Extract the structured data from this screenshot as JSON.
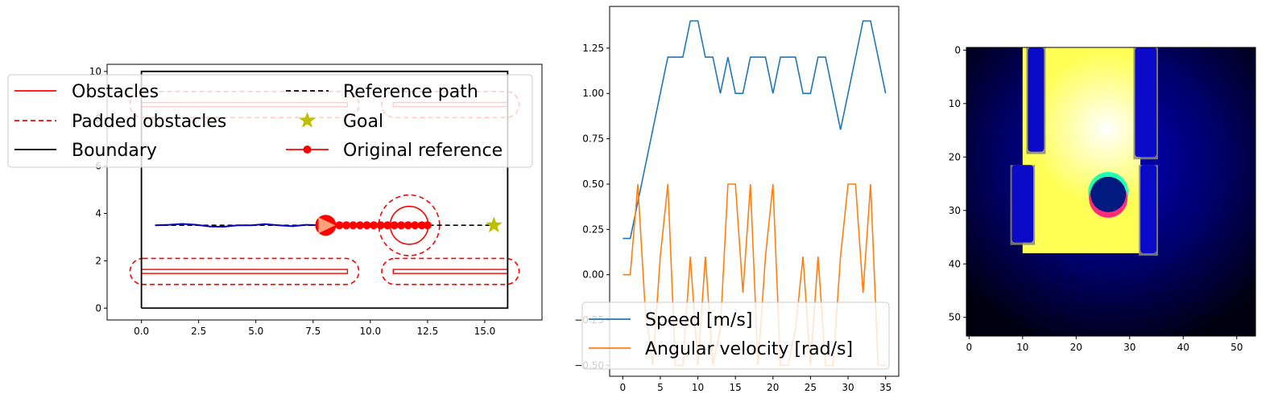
{
  "chart_data": [
    {
      "type": "line",
      "panel": "map",
      "xlim": [
        -1.5,
        17.5
      ],
      "ylim": [
        -0.5,
        10.3
      ],
      "xticks": [
        "0.0",
        "2.5",
        "5.0",
        "7.5",
        "10.0",
        "12.5",
        "15.0"
      ],
      "xtick_values": [
        0,
        2.5,
        5,
        7.5,
        10,
        12.5,
        15
      ],
      "yticks": [
        "0",
        "2",
        "4",
        "6",
        "8",
        "10"
      ],
      "ytick_values": [
        0,
        2,
        4,
        6,
        8,
        10
      ],
      "boundary": [
        [
          0,
          0
        ],
        [
          16,
          0
        ],
        [
          16,
          10
        ],
        [
          0,
          10
        ],
        [
          0,
          0
        ]
      ],
      "obstacles": [
        {
          "x0": 0,
          "x1": 9,
          "y": 1.55
        },
        {
          "x0": 11,
          "x1": 16,
          "y": 1.55
        },
        {
          "x0": 0,
          "x1": 9,
          "y": 8.6
        },
        {
          "x0": 11,
          "x1": 16,
          "y": 8.6
        }
      ],
      "padded_obstacles": [
        {
          "x0": -0.5,
          "x1": 9.5,
          "y0": 1.0,
          "y1": 2.1
        },
        {
          "x0": 10.5,
          "x1": 16.5,
          "y0": 1.0,
          "y1": 2.1
        },
        {
          "x0": -0.5,
          "x1": 9.5,
          "y0": 8.05,
          "y1": 9.15
        },
        {
          "x0": 10.5,
          "x1": 16.5,
          "y0": 8.05,
          "y1": 9.15
        }
      ],
      "moving_obstacle": {
        "cx": 11.7,
        "cy": 3.5,
        "r": 0.8,
        "padded_r": 1.28
      },
      "reference_path": {
        "x": [
          0.6,
          15.4
        ],
        "y": [
          3.5,
          3.5
        ]
      },
      "goal": {
        "x": 15.4,
        "y": 3.5
      },
      "robot": {
        "x": 8.05,
        "y": 3.5
      },
      "original_reference": {
        "x": [
          8.05,
          8.35,
          8.65,
          8.95,
          9.25,
          9.55,
          9.85,
          10.15,
          10.45,
          10.75,
          11.05,
          11.35,
          11.65,
          11.95,
          12.25,
          12.5
        ],
        "y": [
          3.5,
          3.5,
          3.5,
          3.5,
          3.5,
          3.5,
          3.5,
          3.5,
          3.5,
          3.5,
          3.5,
          3.5,
          3.5,
          3.5,
          3.5,
          3.5
        ]
      },
      "trajectory": {
        "x": [
          0.6,
          1.2,
          1.8,
          2.4,
          3.0,
          3.6,
          4.2,
          4.8,
          5.4,
          6.0,
          6.6,
          7.2,
          7.8
        ],
        "y": [
          3.5,
          3.52,
          3.56,
          3.52,
          3.45,
          3.44,
          3.5,
          3.5,
          3.55,
          3.5,
          3.46,
          3.52,
          3.5
        ]
      },
      "legend": {
        "placement": "upper left (spilling outside axes)",
        "entries": [
          "Obstacles",
          "Reference path",
          "Padded obstacles",
          "Goal",
          "Boundary",
          "Original reference"
        ]
      },
      "colors": {
        "obstacle": "#ff0000",
        "boundary": "#000000",
        "trajectory": "#0000cc",
        "goal": "#bfbf00",
        "robot": "#ff0000",
        "robot_marker": "#ffa07a"
      }
    },
    {
      "type": "line",
      "panel": "velocities",
      "xlim": [
        -1.75,
        36.75
      ],
      "ylim": [
        -0.56,
        1.48
      ],
      "xticks": [
        "0",
        "5",
        "10",
        "15",
        "20",
        "25",
        "30",
        "35"
      ],
      "xtick_values": [
        0,
        5,
        10,
        15,
        20,
        25,
        30,
        35
      ],
      "yticks": [
        "−0.50",
        "−0.25",
        "0.00",
        "0.25",
        "0.50",
        "0.75",
        "1.00",
        "1.25"
      ],
      "ytick_values": [
        -0.5,
        -0.25,
        0,
        0.25,
        0.5,
        0.75,
        1.0,
        1.25
      ],
      "x": [
        0,
        1,
        2,
        3,
        4,
        5,
        6,
        7,
        8,
        9,
        10,
        11,
        12,
        13,
        14,
        15,
        16,
        17,
        18,
        19,
        20,
        21,
        22,
        23,
        24,
        25,
        26,
        27,
        28,
        29,
        30,
        31,
        32,
        33,
        34,
        35
      ],
      "series": [
        {
          "name": "Speed [m/s]",
          "color": "#1f77b4",
          "values": [
            0.2,
            0.2,
            0.4,
            0.6,
            0.8,
            1.0,
            1.2,
            1.2,
            1.2,
            1.4,
            1.4,
            1.2,
            1.2,
            1.0,
            1.2,
            1.0,
            1.0,
            1.2,
            1.2,
            1.2,
            1.0,
            1.2,
            1.2,
            1.2,
            1.0,
            1.0,
            1.2,
            1.2,
            1.0,
            0.8,
            1.0,
            1.2,
            1.4,
            1.4,
            1.2,
            1.0
          ]
        },
        {
          "name": "Angular velocity [rad/s]",
          "color": "#ff7f0e",
          "values": [
            0.0,
            0.0,
            0.5,
            -0.2,
            -0.5,
            0.1,
            0.5,
            -0.5,
            -0.5,
            0.1,
            -0.5,
            0.1,
            -0.5,
            -0.3,
            0.5,
            0.5,
            -0.1,
            0.5,
            -0.5,
            0.1,
            0.5,
            -0.5,
            -0.5,
            -0.3,
            0.1,
            -0.5,
            0.1,
            -0.5,
            -0.5,
            0.1,
            0.5,
            0.5,
            -0.1,
            0.5,
            -0.5,
            -0.5
          ]
        }
      ],
      "legend": {
        "placement": "lower left",
        "entries": [
          "Speed [m/s]",
          "Angular velocity [rad/s]"
        ]
      }
    },
    {
      "type": "heatmap",
      "panel": "observation",
      "xlim": [
        -0.5,
        53.5
      ],
      "ylim": [
        53.5,
        -0.5
      ],
      "xticks": [
        "0",
        "10",
        "20",
        "30",
        "40",
        "50"
      ],
      "xtick_values": [
        0,
        10,
        20,
        30,
        40,
        50
      ],
      "yticks": [
        "0",
        "10",
        "20",
        "30",
        "40",
        "50"
      ],
      "ytick_values": [
        0,
        10,
        20,
        30,
        40,
        50
      ],
      "grid_size": [
        54,
        54
      ],
      "free_region": {
        "c0": 10,
        "c1": 32,
        "r0": 0,
        "r1": 38
      },
      "goal_glow": {
        "c": 26,
        "r": 15
      },
      "walls": [
        {
          "c0": 11,
          "c1": 14,
          "r0": 0,
          "r1": 19
        },
        {
          "c0": 31,
          "c1": 35,
          "r0": 0,
          "r1": 20
        },
        {
          "c0": 8,
          "c1": 12,
          "r0": 22,
          "r1": 36
        },
        {
          "c0": 32,
          "c1": 35,
          "r0": 22,
          "r1": 38
        }
      ],
      "agent": {
        "c": 26,
        "r": 27,
        "r_cells": 3.3
      },
      "colors": {
        "free": "#ffff55",
        "glow": "#ffffee",
        "dark": "#000018",
        "wall": "#0a0ac8",
        "agent": "#001a80",
        "cyan": "#22ffb0",
        "pink": "#ff2a7a",
        "edge": "#8a8a70"
      }
    }
  ]
}
